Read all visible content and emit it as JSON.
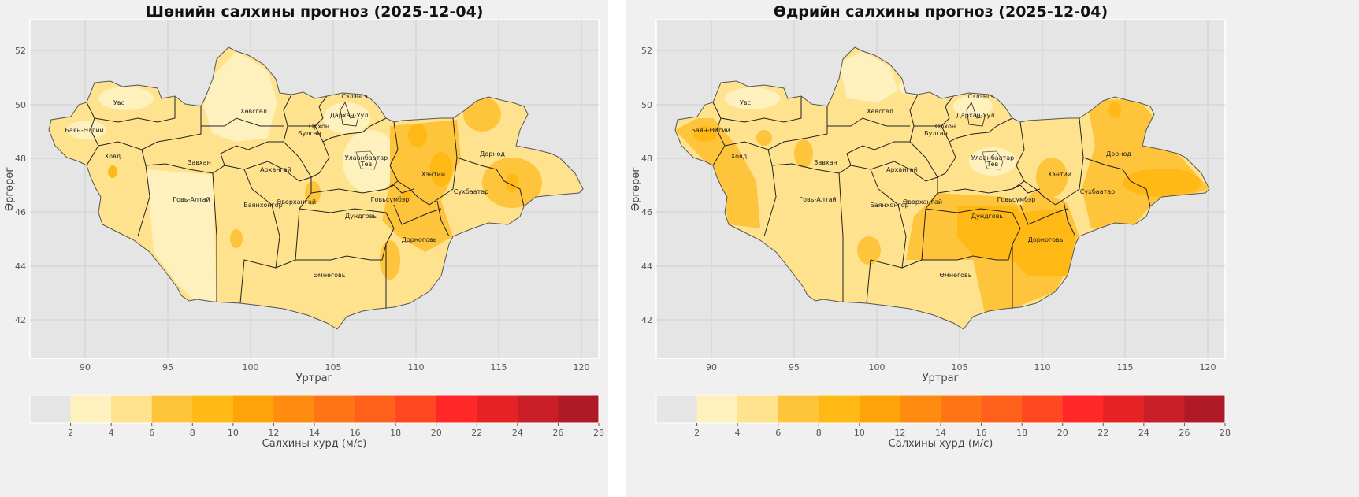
{
  "panels": [
    {
      "title": "Шөнийн салхины прогноз (2025-12-04)",
      "variant": "night"
    },
    {
      "title": "Өдрийн салхины прогноз (2025-12-04)",
      "variant": "day"
    }
  ],
  "axes": {
    "xlabel": "Уртраг",
    "ylabel": "Өргөрөг",
    "xticks": [
      "90",
      "95",
      "100",
      "105",
      "110",
      "115",
      "120"
    ],
    "yticks": [
      "52",
      "50",
      "48",
      "46",
      "44",
      "42"
    ]
  },
  "colorbar": {
    "label": "Салхины хурд (м/с)",
    "ticks": [
      "2",
      "4",
      "6",
      "8",
      "10",
      "12",
      "14",
      "16",
      "18",
      "20",
      "22",
      "24",
      "26",
      "28"
    ],
    "colors": [
      "#e5e5e5",
      "#fef1bd",
      "#ffe28d",
      "#fec43c",
      "#ffb814",
      "#ffa30a",
      "#ff8b10",
      "#ff7516",
      "#ff601c",
      "#ff4822",
      "#ff2727",
      "#e52326",
      "#c91e28",
      "#b01a27"
    ]
  },
  "provinces": [
    "Увс",
    "Баян-Өлгий",
    "Ховд",
    "Завхан",
    "Хөвсгөл",
    "Говь-Алтай",
    "Баянхонгор",
    "Архангай",
    "Булган",
    "Орхон",
    "Сэлэнгэ",
    "Дархан-Уул",
    "Улаанбаатар",
    "Төв",
    "Өвөрхангай",
    "Дундговь",
    "Говьсүмбэр",
    "Хэнтий",
    "Дорнод",
    "Сүхбаатар",
    "Дорноговь",
    "Өмнөговь"
  ]
}
